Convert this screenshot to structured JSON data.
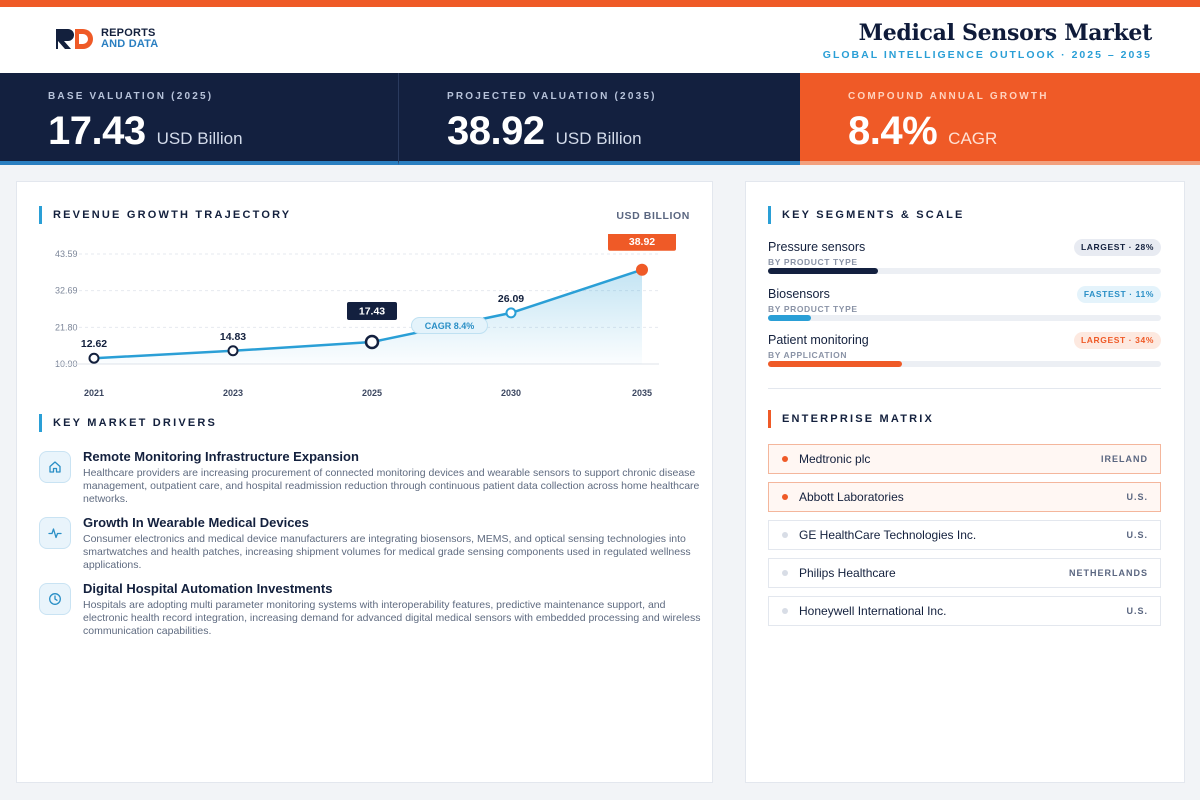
{
  "brand": {
    "line1": "REPORTS",
    "line2": "AND DATA",
    "colors": {
      "accent": "#ef5a27",
      "navy": "#13203f",
      "blue": "#2a9fd6"
    }
  },
  "header": {
    "title": "Medical Sensors Market",
    "subtitle": "GLOBAL INTELLIGENCE OUTLOOK  ·  2025 – 2035"
  },
  "kpis": [
    {
      "label": "BASE VALUATION (2025)",
      "value": "17.43",
      "unit": "USD Billion"
    },
    {
      "label": "PROJECTED VALUATION (2035)",
      "value": "38.92",
      "unit": "USD Billion"
    },
    {
      "label": "COMPOUND ANNUAL GROWTH",
      "value": "8.4%",
      "unit": "CAGR"
    }
  ],
  "revenue": {
    "title": "REVENUE GROWTH TRAJECTORY",
    "unit": "USD BILLION"
  },
  "chart_data": {
    "type": "area",
    "x": [
      "2021",
      "2023",
      "2025",
      "2030",
      "2035"
    ],
    "values": [
      12.62,
      14.83,
      17.43,
      26.09,
      38.92
    ],
    "labels": [
      "12.62",
      "14.83",
      "17.43",
      "26.09",
      "38.92"
    ],
    "y_ticks": [
      "43.59",
      "32.69",
      "21.80",
      "10.90"
    ],
    "y_tick_values": [
      43.59,
      32.69,
      21.8,
      10.9
    ],
    "ylim": [
      10.9,
      43.59
    ],
    "annotation": "CAGR 8.4%",
    "highlight_points": [
      "2025",
      "2035"
    ],
    "grid": true,
    "colors": {
      "line": "#2a9fd6",
      "highlight_2025": "#13203f",
      "highlight_2035": "#ef5a27"
    }
  },
  "drivers": {
    "title": "KEY MARKET DRIVERS",
    "items": [
      {
        "icon": "home-icon",
        "title": "Remote Monitoring Infrastructure Expansion",
        "desc": "Healthcare providers are increasing procurement of connected monitoring devices and wearable sensors to support chronic disease management, outpatient care, and hospital readmission reduction through continuous patient data collection across home healthcare networks."
      },
      {
        "icon": "activity-icon",
        "title": "Growth In Wearable Medical Devices",
        "desc": "Consumer electronics and medical device manufacturers are integrating biosensors, MEMS, and optical sensing technologies into smartwatches and health patches, increasing shipment volumes for medical grade sensing components used in regulated wellness applications."
      },
      {
        "icon": "clock-icon",
        "title": "Digital Hospital Automation Investments",
        "desc": "Hospitals are adopting multi parameter monitoring systems with interoperability features, predictive maintenance support, and electronic health record integration, increasing demand for advanced digital medical sensors with embedded processing and wireless communication capabilities."
      }
    ]
  },
  "segments": {
    "title": "KEY SEGMENTS & SCALE",
    "items": [
      {
        "name": "Pressure sensors",
        "sub": "BY PRODUCT TYPE",
        "badge": "LARGEST · 28%",
        "share": 0.28,
        "color": "#13203f"
      },
      {
        "name": "Biosensors",
        "sub": "BY PRODUCT TYPE",
        "badge": "FASTEST · 11%",
        "share": 0.11,
        "color": "#2a9fd6"
      },
      {
        "name": "Patient monitoring",
        "sub": "BY APPLICATION",
        "badge": "LARGEST · 34%",
        "share": 0.34,
        "color": "#ef5a27"
      }
    ]
  },
  "enterprise": {
    "title": "ENTERPRISE MATRIX",
    "items": [
      {
        "name": "Medtronic plc",
        "country": "IRELAND"
      },
      {
        "name": "Abbott Laboratories",
        "country": "U.S."
      },
      {
        "name": "GE HealthCare Technologies Inc.",
        "country": "U.S."
      },
      {
        "name": "Philips Healthcare",
        "country": "NETHERLANDS"
      },
      {
        "name": "Honeywell International Inc.",
        "country": "U.S."
      }
    ]
  }
}
